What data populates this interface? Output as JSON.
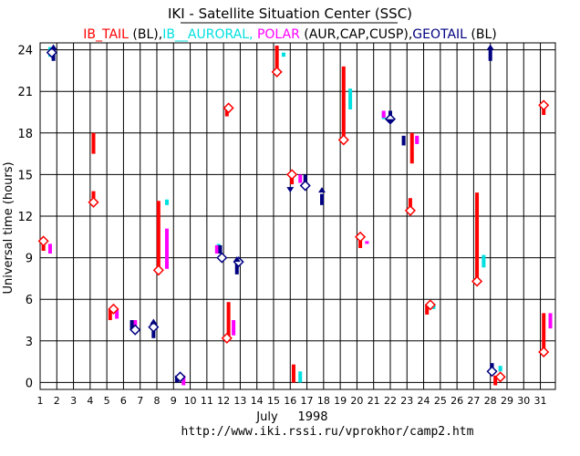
{
  "chart_data": {
    "type": "scatter",
    "title": "IKI - Satellite Situation Center (SSC)",
    "legend": [
      {
        "text": "IB_TAIL",
        "color": "#ff0000"
      },
      {
        "text": " (BL),",
        "color": "#000000"
      },
      {
        "text": "IB__AURORAL,",
        "color": "#00e0e0"
      },
      {
        "text": " POLAR",
        "color": "#ff00ff"
      },
      {
        "text": " (AUR,CAP,CUSP),",
        "color": "#000000"
      },
      {
        "text": "GEOTAIL",
        "color": "#000080"
      },
      {
        "text": " (BL)",
        "color": "#000000"
      }
    ],
    "ylabel": "Universal time (hours)",
    "xlabel_month": "July",
    "xlabel_year": "1998",
    "url": "http://www.iki.rssi.ru/vprokhor/camp2.htm",
    "xlim": [
      1,
      31.9
    ],
    "ylim": [
      -0.5,
      24.5
    ],
    "x_ticks": [
      1,
      2,
      3,
      4,
      5,
      6,
      7,
      8,
      9,
      10,
      11,
      12,
      13,
      14,
      15,
      16,
      17,
      18,
      19,
      20,
      21,
      22,
      23,
      24,
      25,
      26,
      27,
      28,
      29,
      30,
      31
    ],
    "y_ticks": [
      0,
      3,
      6,
      9,
      12,
      15,
      18,
      21,
      24
    ],
    "colors": {
      "ib_tail": "#ff0000",
      "auroral": "#00e0e0",
      "polar": "#ff00ff",
      "geotail": "#000080",
      "diamond": "#ff0000"
    },
    "series": [
      {
        "name": "IB_TAIL",
        "color": "#ff0000",
        "segments": [
          {
            "x": 1.2,
            "y0": 9.5,
            "y1": 10.1
          },
          {
            "x": 4.2,
            "y0": 13.3,
            "y1": 13.8
          },
          {
            "x": 4.2,
            "y0": 16.5,
            "y1": 18.0
          },
          {
            "x": 5.2,
            "y0": 4.5,
            "y1": 5.3
          },
          {
            "x": 8.1,
            "y0": 8.2,
            "y1": 13.1
          },
          {
            "x": 12.2,
            "y0": 19.2,
            "y1": 19.8
          },
          {
            "x": 12.3,
            "y0": 3.0,
            "y1": 5.8
          },
          {
            "x": 15.2,
            "y0": 22.5,
            "y1": 24.3
          },
          {
            "x": 16.1,
            "y0": 14.3,
            "y1": 15.0
          },
          {
            "x": 16.2,
            "y0": 0.0,
            "y1": 1.3
          },
          {
            "x": 19.2,
            "y0": 17.8,
            "y1": 22.8
          },
          {
            "x": 20.2,
            "y0": 9.7,
            "y1": 10.5
          },
          {
            "x": 23.2,
            "y0": 12.5,
            "y1": 13.3
          },
          {
            "x": 23.3,
            "y0": 15.8,
            "y1": 18.0
          },
          {
            "x": 24.2,
            "y0": 4.9,
            "y1": 5.6
          },
          {
            "x": 27.2,
            "y0": 7.3,
            "y1": 13.7
          },
          {
            "x": 28.3,
            "y0": -0.2,
            "y1": 0.5
          },
          {
            "x": 31.2,
            "y0": 19.3,
            "y1": 20.0
          },
          {
            "x": 31.2,
            "y0": 2.2,
            "y1": 5.0
          }
        ]
      },
      {
        "name": "IB_AURORAL",
        "color": "#00e0e0",
        "segments": [
          {
            "x": 1.6,
            "y0": 23.5,
            "y1": 24.2
          },
          {
            "x": 8.6,
            "y0": 12.8,
            "y1": 13.2
          },
          {
            "x": 11.7,
            "y0": 9.5,
            "y1": 10.0
          },
          {
            "x": 15.6,
            "y0": 23.5,
            "y1": 23.8
          },
          {
            "x": 16.6,
            "y0": 0.0,
            "y1": 0.8
          },
          {
            "x": 19.6,
            "y0": 19.7,
            "y1": 21.2
          },
          {
            "x": 21.6,
            "y0": 19.0,
            "y1": 19.5
          },
          {
            "x": 23.6,
            "y0": 17.3,
            "y1": 17.7
          },
          {
            "x": 24.6,
            "y0": 5.3,
            "y1": 5.7
          },
          {
            "x": 27.6,
            "y0": 8.3,
            "y1": 9.2
          },
          {
            "x": 28.6,
            "y0": 0.8,
            "y1": 1.2
          }
        ]
      },
      {
        "name": "POLAR",
        "color": "#ff00ff",
        "segments": [
          {
            "x": 1.6,
            "y0": 9.3,
            "y1": 10.0
          },
          {
            "x": 5.6,
            "y0": 4.6,
            "y1": 5.3
          },
          {
            "x": 6.7,
            "y0": 3.8,
            "y1": 4.5
          },
          {
            "x": 8.6,
            "y0": 8.2,
            "y1": 11.1
          },
          {
            "x": 9.6,
            "y0": -0.2,
            "y1": 0.5
          },
          {
            "x": 11.6,
            "y0": 9.3,
            "y1": 9.9
          },
          {
            "x": 12.6,
            "y0": 3.4,
            "y1": 4.5
          },
          {
            "x": 16.6,
            "y0": 14.4,
            "y1": 15.0
          },
          {
            "x": 20.6,
            "y0": 10.0,
            "y1": 10.2
          },
          {
            "x": 21.6,
            "y0": 19.1,
            "y1": 19.6
          },
          {
            "x": 23.6,
            "y0": 17.2,
            "y1": 17.8
          },
          {
            "x": 31.6,
            "y0": 3.9,
            "y1": 5.0
          }
        ]
      },
      {
        "name": "GEOTAIL",
        "color": "#000080",
        "segments": [
          {
            "x": 1.8,
            "y0": 23.2,
            "y1": 24.1
          },
          {
            "x": 6.5,
            "y0": 3.8,
            "y1": 4.5
          },
          {
            "x": 7.8,
            "y0": 3.2,
            "y1": 4.1
          },
          {
            "x": 9.2,
            "y0": 0.0,
            "y1": 0.5
          },
          {
            "x": 11.8,
            "y0": 9.3,
            "y1": 9.9
          },
          {
            "x": 12.8,
            "y0": 7.8,
            "y1": 8.6
          },
          {
            "x": 16.9,
            "y0": 14.2,
            "y1": 15.0
          },
          {
            "x": 17.9,
            "y0": 12.8,
            "y1": 13.6
          },
          {
            "x": 22.0,
            "y0": 19.0,
            "y1": 19.6
          },
          {
            "x": 22.8,
            "y0": 17.1,
            "y1": 17.8
          },
          {
            "x": 28.0,
            "y0": 23.2,
            "y1": 24.1
          },
          {
            "x": 28.1,
            "y0": 0.8,
            "y1": 1.4
          }
        ]
      }
    ],
    "markers": [
      {
        "type": "diamond",
        "x": 1.2,
        "y": 10.2
      },
      {
        "type": "diamond",
        "x": 4.2,
        "y": 13.0
      },
      {
        "type": "diamond",
        "x": 5.4,
        "y": 5.3
      },
      {
        "type": "diamond",
        "x": 8.1,
        "y": 8.1
      },
      {
        "type": "diamond",
        "x": 12.3,
        "y": 19.8
      },
      {
        "type": "diamond",
        "x": 12.2,
        "y": 3.2
      },
      {
        "type": "diamond",
        "x": 15.2,
        "y": 22.4
      },
      {
        "type": "diamond",
        "x": 16.1,
        "y": 15.0
      },
      {
        "type": "diamond",
        "x": 19.2,
        "y": 17.5
      },
      {
        "type": "diamond",
        "x": 20.2,
        "y": 10.5
      },
      {
        "type": "diamond",
        "x": 23.2,
        "y": 12.4
      },
      {
        "type": "diamond",
        "x": 24.4,
        "y": 5.6
      },
      {
        "type": "diamond",
        "x": 27.2,
        "y": 7.3
      },
      {
        "type": "diamond",
        "x": 28.6,
        "y": 0.4
      },
      {
        "type": "diamond",
        "x": 31.2,
        "y": 20.0
      },
      {
        "type": "diamond",
        "x": 31.2,
        "y": 2.2
      },
      {
        "type": "geo-diamond",
        "x": 1.7,
        "y": 23.8
      },
      {
        "type": "geo-diamond",
        "x": 6.7,
        "y": 3.8
      },
      {
        "type": "geo-diamond",
        "x": 7.8,
        "y": 4.0
      },
      {
        "type": "geo-diamond",
        "x": 9.4,
        "y": 0.4
      },
      {
        "type": "geo-diamond",
        "x": 11.9,
        "y": 9.0
      },
      {
        "type": "geo-diamond",
        "x": 12.9,
        "y": 8.7
      },
      {
        "type": "geo-diamond",
        "x": 16.9,
        "y": 14.2
      },
      {
        "type": "geo-diamond",
        "x": 22.0,
        "y": 19.0
      },
      {
        "type": "geo-diamond",
        "x": 28.1,
        "y": 0.8
      },
      {
        "type": "arrow-up",
        "x": 1.8,
        "y": 24.0
      },
      {
        "type": "arrow-up",
        "x": 7.8,
        "y": 4.2
      },
      {
        "type": "arrow-up",
        "x": 12.8,
        "y": 8.7
      },
      {
        "type": "arrow-up",
        "x": 17.9,
        "y": 13.7
      },
      {
        "type": "arrow-up",
        "x": 28.0,
        "y": 24.0
      },
      {
        "type": "arrow-down",
        "x": 16.0,
        "y": 14.1
      },
      {
        "type": "arrow-down",
        "x": 22.0,
        "y": 19.0
      }
    ]
  }
}
